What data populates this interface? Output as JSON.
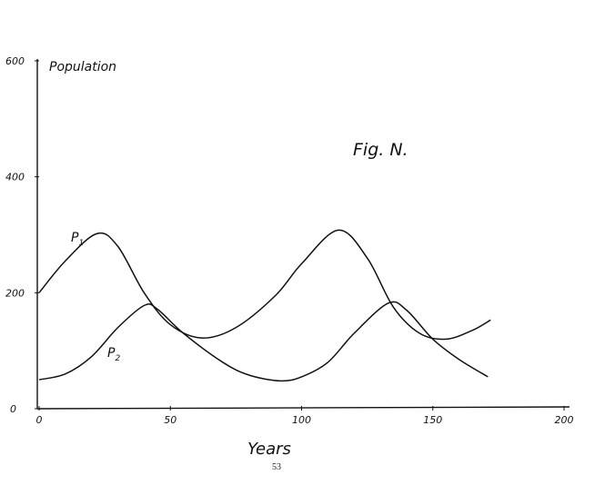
{
  "chart_data": {
    "type": "line",
    "title": "Fig. N.",
    "xlabel": "Years",
    "ylabel": "Population",
    "xlim": [
      0,
      200
    ],
    "ylim": [
      0,
      600
    ],
    "x_ticks": [
      "0",
      "50",
      "100",
      "150",
      "200"
    ],
    "y_ticks": [
      "0",
      "200",
      "400",
      "600"
    ],
    "grid": false,
    "series": [
      {
        "name": "P1",
        "label_main": "P",
        "label_sub": "1",
        "x": [
          0,
          10,
          22,
          30,
          40,
          50,
          62,
          75,
          90,
          100,
          114,
          125,
          135,
          145,
          155,
          165,
          172
        ],
        "y": [
          200,
          255,
          302,
          280,
          200,
          145,
          122,
          140,
          195,
          250,
          308,
          260,
          175,
          130,
          120,
          135,
          153
        ]
      },
      {
        "name": "P2",
        "label_main": "P",
        "label_sub": "2",
        "x": [
          0,
          10,
          20,
          30,
          40,
          45,
          55,
          70,
          80,
          92,
          100,
          110,
          120,
          133,
          140,
          150,
          160,
          171
        ],
        "y": [
          50,
          60,
          90,
          140,
          178,
          172,
          130,
          80,
          58,
          48,
          55,
          80,
          130,
          182,
          170,
          120,
          85,
          55
        ]
      }
    ]
  },
  "page_number": "53"
}
